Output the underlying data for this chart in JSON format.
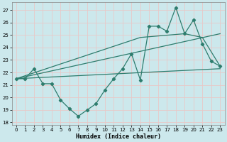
{
  "xlabel": "Humidex (Indice chaleur)",
  "bg_color": "#cce8ec",
  "line_color": "#2e7d6e",
  "grid_color": "#e8c8c8",
  "xlim": [
    -0.5,
    23.5
  ],
  "ylim": [
    17.8,
    27.6
  ],
  "yticks": [
    18,
    19,
    20,
    21,
    22,
    23,
    24,
    25,
    26,
    27
  ],
  "xticks": [
    0,
    1,
    2,
    3,
    4,
    5,
    6,
    7,
    8,
    9,
    10,
    11,
    12,
    13,
    14,
    15,
    16,
    17,
    18,
    19,
    20,
    21,
    22,
    23
  ],
  "series1_x": [
    0,
    1,
    2,
    3,
    4,
    5,
    6,
    7,
    8,
    9,
    10,
    11,
    12,
    13,
    14,
    15,
    16,
    17,
    18,
    19,
    20,
    21,
    22,
    23
  ],
  "series1_y": [
    21.5,
    21.5,
    22.3,
    21.1,
    21.1,
    19.8,
    19.1,
    18.5,
    19.0,
    19.5,
    20.6,
    21.5,
    22.3,
    23.5,
    21.4,
    25.7,
    25.7,
    25.3,
    27.2,
    25.1,
    26.2,
    24.3,
    22.9,
    22.5
  ],
  "series2_x": [
    0,
    23
  ],
  "series2_y": [
    21.5,
    25.1
  ],
  "series3_x": [
    0,
    14,
    19,
    21,
    23
  ],
  "series3_y": [
    21.5,
    24.8,
    25.1,
    24.8,
    22.5
  ],
  "series4_x": [
    0,
    23
  ],
  "series4_y": [
    21.5,
    22.3
  ]
}
